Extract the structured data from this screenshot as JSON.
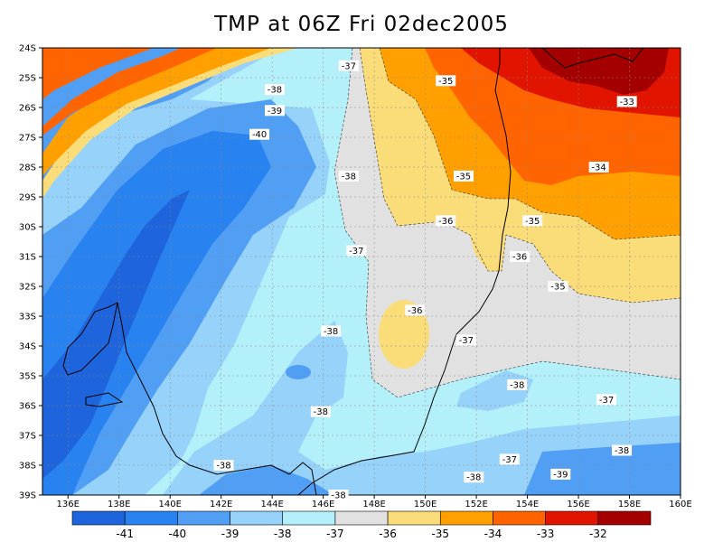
{
  "title": "TMP at 06Z Fri 02dec2005",
  "lat_labels": [
    "24S",
    "25S",
    "26S",
    "27S",
    "28S",
    "29S",
    "30S",
    "31S",
    "32S",
    "33S",
    "34S",
    "35S",
    "36S",
    "37S",
    "38S",
    "39S"
  ],
  "lon_labels": [
    "136E",
    "138E",
    "140E",
    "142E",
    "144E",
    "146E",
    "148E",
    "150E",
    "152E",
    "154E",
    "156E",
    "158E",
    "160E"
  ],
  "contour_labels": [
    {
      "text": "-37",
      "lon": 147.0,
      "lat": 24.6
    },
    {
      "text": "-35",
      "lon": 150.8,
      "lat": 25.1
    },
    {
      "text": "-38",
      "lon": 144.1,
      "lat": 25.4
    },
    {
      "text": "-39",
      "lon": 144.1,
      "lat": 26.1
    },
    {
      "text": "-40",
      "lon": 143.5,
      "lat": 26.9
    },
    {
      "text": "-33",
      "lon": 157.9,
      "lat": 25.8
    },
    {
      "text": "-38",
      "lon": 147.0,
      "lat": 28.3
    },
    {
      "text": "-35",
      "lon": 151.5,
      "lat": 28.3
    },
    {
      "text": "-34",
      "lon": 156.8,
      "lat": 28.0
    },
    {
      "text": "-36",
      "lon": 150.8,
      "lat": 29.8
    },
    {
      "text": "-35",
      "lon": 154.2,
      "lat": 29.8
    },
    {
      "text": "-37",
      "lon": 147.3,
      "lat": 30.8
    },
    {
      "text": "-36",
      "lon": 153.7,
      "lat": 31.0
    },
    {
      "text": "-35",
      "lon": 155.2,
      "lat": 32.0
    },
    {
      "text": "-36",
      "lon": 149.6,
      "lat": 32.8
    },
    {
      "text": "-38",
      "lon": 146.3,
      "lat": 33.5
    },
    {
      "text": "-37",
      "lon": 151.6,
      "lat": 33.8
    },
    {
      "text": "-38",
      "lon": 153.6,
      "lat": 35.3
    },
    {
      "text": "-37",
      "lon": 157.1,
      "lat": 35.8
    },
    {
      "text": "-38",
      "lon": 145.9,
      "lat": 36.2
    },
    {
      "text": "-37",
      "lon": 153.3,
      "lat": 37.8
    },
    {
      "text": "-38",
      "lon": 157.7,
      "lat": 37.5
    },
    {
      "text": "-38",
      "lon": 151.9,
      "lat": 38.4
    },
    {
      "text": "-39",
      "lon": 155.3,
      "lat": 38.3
    },
    {
      "text": "-38",
      "lon": 142.1,
      "lat": 38.0
    },
    {
      "text": "-38",
      "lon": 146.6,
      "lat": 39.0
    }
  ],
  "colorbar": {
    "colors": [
      "#1e64dc",
      "#2882f0",
      "#509ff5",
      "#96d2fa",
      "#b4f0fa",
      "#e1e1e1",
      "#fadc78",
      "#ffa000",
      "#ff6400",
      "#e11400",
      "#a50000"
    ],
    "labels": [
      "-41",
      "-40",
      "-39",
      "-38",
      "-37",
      "-36",
      "-35",
      "-34",
      "-33",
      "-32"
    ]
  }
}
